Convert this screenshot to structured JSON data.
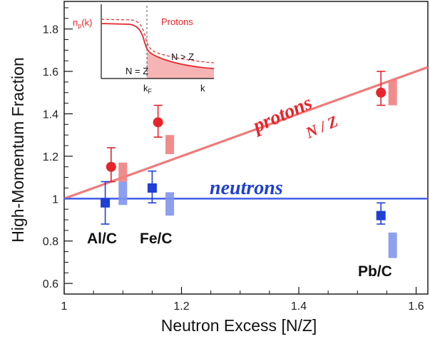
{
  "chart_data": {
    "type": "scatter",
    "xlabel": "Neutron Excess [N/Z]",
    "ylabel": "High-Momentum Fraction",
    "xlim": [
      1.0,
      1.62
    ],
    "ylim": [
      0.55,
      1.93
    ],
    "x_ticks": [
      "1",
      "1.2",
      "1.4",
      "1.6"
    ],
    "y_ticks": [
      "0.6",
      "0.8",
      "1",
      "1.2",
      "1.4",
      "1.6",
      "1.8"
    ],
    "grid": false,
    "colors": {
      "protons": "#e8242b",
      "protons_band": "#f08080",
      "neutrons": "#1f3fd6",
      "neutrons_band": "#7f95ee",
      "proton_line": "#f07a7a",
      "neutron_line": "#4a63e8"
    },
    "series": [
      {
        "name": "protons",
        "marker": "circle",
        "points": [
          {
            "x": 1.08,
            "y": 1.15,
            "err_low": 0.07,
            "err_high": 0.09,
            "band_x": 1.1,
            "band_low": 1.08,
            "band_high": 1.17
          },
          {
            "x": 1.16,
            "y": 1.36,
            "err_low": 0.07,
            "err_high": 0.08,
            "band_x": 1.18,
            "band_low": 1.21,
            "band_high": 1.3
          },
          {
            "x": 1.54,
            "y": 1.5,
            "err_low": 0.06,
            "err_high": 0.1,
            "band_x": 1.56,
            "band_low": 1.44,
            "band_high": 1.56
          }
        ]
      },
      {
        "name": "neutrons",
        "marker": "square",
        "points": [
          {
            "x": 1.07,
            "y": 0.98,
            "err_low": 0.1,
            "err_high": 0.1,
            "band_x": 1.1,
            "band_low": 0.97,
            "band_high": 1.08
          },
          {
            "x": 1.15,
            "y": 1.05,
            "err_low": 0.07,
            "err_high": 0.08,
            "band_x": 1.18,
            "band_low": 0.92,
            "band_high": 1.03
          },
          {
            "x": 1.54,
            "y": 0.92,
            "err_low": 0.04,
            "err_high": 0.06,
            "band_x": 1.56,
            "band_low": 0.72,
            "band_high": 0.84
          }
        ]
      }
    ],
    "lines": [
      {
        "name": "protons",
        "formula": "N / Z",
        "from": [
          1.0,
          1.0
        ],
        "to": [
          1.62,
          1.62
        ]
      },
      {
        "name": "neutrons",
        "formula": "",
        "from": [
          1.0,
          1.0
        ],
        "to": [
          1.62,
          1.0
        ]
      }
    ],
    "annotations": {
      "protons": "protons",
      "neutrons": "neutrons",
      "nz": "N / Z",
      "ratios": [
        "Al/C",
        "Fe/C",
        "Pb/C"
      ]
    },
    "inset": {
      "np_label": "n",
      "np_sub": "p",
      "np_arg": "(k)",
      "title": "Protons",
      "nz_eq": "N = Z",
      "nz_gt": "N > Z",
      "kf_main": "k",
      "kf_sub": "F",
      "k_label": "k"
    }
  }
}
